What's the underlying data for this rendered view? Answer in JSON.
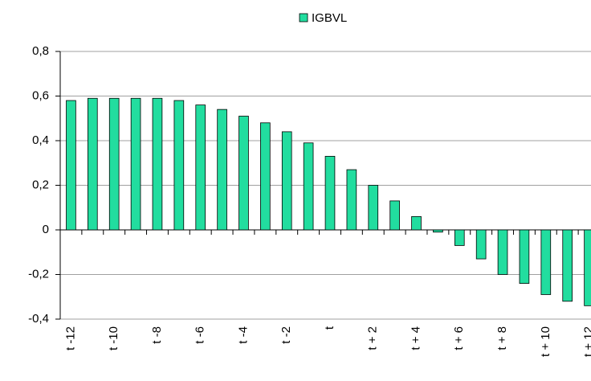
{
  "chart_data": {
    "type": "bar",
    "categories": [
      "t -12",
      null,
      "t -10",
      null,
      "t -8",
      null,
      "t -6",
      null,
      "t -4",
      null,
      "t -2",
      null,
      "t",
      null,
      "t + 2",
      null,
      "t + 4",
      null,
      "t + 6",
      null,
      "t + 8",
      null,
      "t + 10",
      null,
      "t + 12"
    ],
    "series": [
      {
        "name": "IGBVL",
        "color": "#22dd9f",
        "values": [
          0.58,
          0.59,
          0.59,
          0.59,
          0.59,
          0.58,
          0.56,
          0.54,
          0.51,
          0.48,
          0.44,
          0.39,
          0.33,
          0.27,
          0.2,
          0.13,
          0.06,
          -0.01,
          -0.07,
          -0.13,
          -0.2,
          -0.24,
          -0.29,
          -0.32,
          -0.34
        ]
      }
    ],
    "ylim": [
      -0.4,
      0.8
    ],
    "yticks": [
      {
        "value": -0.4,
        "label": "-0,4"
      },
      {
        "value": -0.2,
        "label": "-0,2"
      },
      0,
      {
        "value": 0.2,
        "label": "0,2"
      },
      {
        "value": 0.4,
        "label": "0,4"
      },
      {
        "value": 0.6,
        "label": "0,6"
      },
      {
        "value": 0.8,
        "label": "0,8"
      }
    ],
    "grid": true,
    "legend": "top"
  }
}
